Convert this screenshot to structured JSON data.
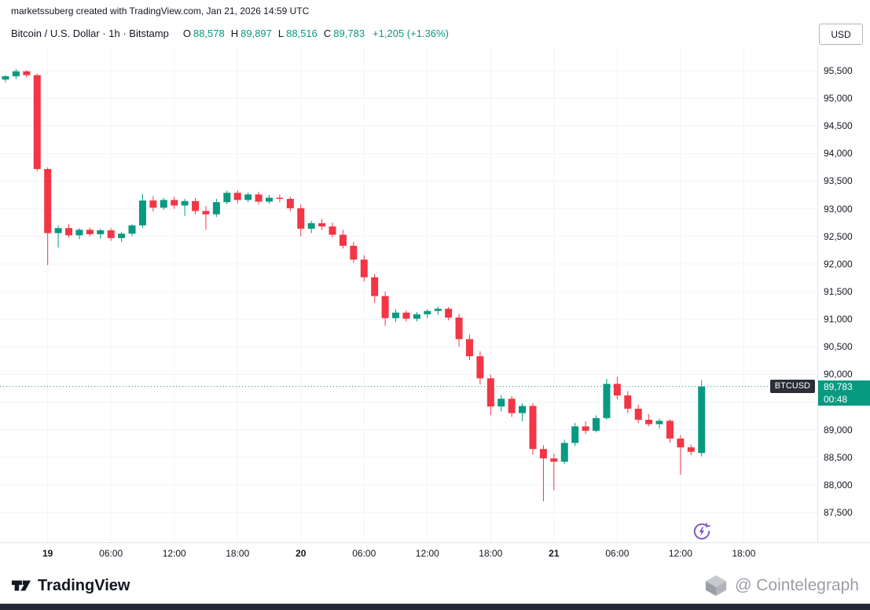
{
  "attribution": "marketssuberg created with TradingView.com, Jan 21, 2026 14:59 UTC",
  "header": {
    "symbol_title": "Bitcoin / U.S. Dollar · 1h · Bitstamp",
    "ohlc": {
      "o_label": "O",
      "o": "88,578",
      "h_label": "H",
      "h": "89,897",
      "l_label": "L",
      "l": "88,516",
      "c_label": "C",
      "c": "89,783",
      "change": "+1,205 (+1.36%)"
    },
    "currency_button": "USD"
  },
  "last_price": {
    "tag": "BTCUSD",
    "price": "89,783",
    "countdown": "00:48",
    "value": 89783
  },
  "price_axis": {
    "labels": [
      "95,500",
      "95,000",
      "94,500",
      "94,000",
      "93,500",
      "93,000",
      "92,500",
      "92,000",
      "91,500",
      "91,000",
      "90,500",
      "90,000",
      "89,500",
      "89,000",
      "88,500",
      "88,000",
      "87,500"
    ],
    "values": [
      95500,
      95000,
      94500,
      94000,
      93500,
      93000,
      92500,
      92000,
      91500,
      91000,
      90500,
      90000,
      89500,
      89000,
      88500,
      88000,
      87500
    ]
  },
  "footer": {
    "tradingview": "TradingView",
    "watermark": "@ Cointelegraph"
  },
  "colors": {
    "up": "#089981",
    "down": "#f23645",
    "grid": "#f0f3fa",
    "axis_text": "#131722",
    "accent_purple": "#7e57c2",
    "tag_bg": "#2a2e39"
  },
  "chart_data": {
    "type": "candlestick",
    "title": "Bitcoin / U.S. Dollar",
    "exchange": "Bitstamp",
    "interval": "1h",
    "currency": "USD",
    "first_candle_time": "Jan 18 20:00",
    "last_candle_time": "Jan 21 14:00",
    "ylim": [
      86959,
      95927
    ],
    "y_ticks": [
      87500,
      88000,
      88500,
      89000,
      89500,
      90000,
      90500,
      91000,
      91500,
      92000,
      92500,
      93000,
      93500,
      94000,
      94500,
      95000,
      95500
    ],
    "time_ticks": [
      {
        "i": 4,
        "label": "19",
        "major": true
      },
      {
        "i": 10,
        "label": "06:00",
        "major": false
      },
      {
        "i": 16,
        "label": "12:00",
        "major": false
      },
      {
        "i": 22,
        "label": "18:00",
        "major": false
      },
      {
        "i": 28,
        "label": "20",
        "major": true
      },
      {
        "i": 34,
        "label": "06:00",
        "major": false
      },
      {
        "i": 40,
        "label": "12:00",
        "major": false
      },
      {
        "i": 46,
        "label": "18:00",
        "major": false
      },
      {
        "i": 52,
        "label": "21",
        "major": true
      },
      {
        "i": 58,
        "label": "06:00",
        "major": false
      },
      {
        "i": 64,
        "label": "12:00",
        "major": false
      },
      {
        "i": 70,
        "label": "18:00",
        "major": false
      }
    ],
    "candles": [
      [
        95340,
        95420,
        95290,
        95400
      ],
      [
        95400,
        95530,
        95350,
        95490
      ],
      [
        95490,
        95510,
        95380,
        95420
      ],
      [
        95420,
        95450,
        93680,
        93720
      ],
      [
        93720,
        93750,
        91980,
        92560
      ],
      [
        92560,
        92700,
        92300,
        92650
      ],
      [
        92650,
        92720,
        92480,
        92520
      ],
      [
        92520,
        92650,
        92450,
        92620
      ],
      [
        92620,
        92660,
        92500,
        92540
      ],
      [
        92540,
        92640,
        92460,
        92610
      ],
      [
        92610,
        92650,
        92420,
        92470
      ],
      [
        92470,
        92580,
        92400,
        92550
      ],
      [
        92550,
        92720,
        92500,
        92700
      ],
      [
        92700,
        93270,
        92650,
        93150
      ],
      [
        93150,
        93230,
        92950,
        93020
      ],
      [
        93020,
        93200,
        92980,
        93160
      ],
      [
        93160,
        93220,
        93000,
        93060
      ],
      [
        93060,
        93180,
        92870,
        93140
      ],
      [
        93140,
        93200,
        92900,
        92960
      ],
      [
        92960,
        93050,
        92620,
        92900
      ],
      [
        92900,
        93180,
        92850,
        93120
      ],
      [
        93120,
        93330,
        93080,
        93290
      ],
      [
        93290,
        93340,
        93100,
        93160
      ],
      [
        93160,
        93300,
        93120,
        93260
      ],
      [
        93260,
        93310,
        93080,
        93130
      ],
      [
        93130,
        93250,
        93090,
        93200
      ],
      [
        93200,
        93260,
        93120,
        93180
      ],
      [
        93180,
        93220,
        92960,
        93010
      ],
      [
        93010,
        93080,
        92500,
        92640
      ],
      [
        92640,
        92780,
        92560,
        92740
      ],
      [
        92740,
        92820,
        92620,
        92680
      ],
      [
        92680,
        92750,
        92480,
        92530
      ],
      [
        92530,
        92620,
        92280,
        92330
      ],
      [
        92330,
        92400,
        92020,
        92080
      ],
      [
        92080,
        92160,
        91680,
        91760
      ],
      [
        91760,
        91820,
        91300,
        91420
      ],
      [
        91420,
        91500,
        90880,
        91020
      ],
      [
        91020,
        91180,
        90950,
        91120
      ],
      [
        91120,
        91160,
        90960,
        91010
      ],
      [
        91010,
        91130,
        90960,
        91090
      ],
      [
        91090,
        91180,
        91020,
        91150
      ],
      [
        91150,
        91230,
        91080,
        91190
      ],
      [
        91190,
        91220,
        90980,
        91030
      ],
      [
        91030,
        91100,
        90500,
        90640
      ],
      [
        90640,
        90720,
        90260,
        90330
      ],
      [
        90330,
        90420,
        89820,
        89930
      ],
      [
        89930,
        90000,
        89260,
        89420
      ],
      [
        89420,
        89630,
        89330,
        89560
      ],
      [
        89560,
        89610,
        89230,
        89300
      ],
      [
        89300,
        89480,
        89150,
        89430
      ],
      [
        89430,
        89480,
        88550,
        88650
      ],
      [
        88650,
        88720,
        87700,
        88480
      ],
      [
        88480,
        88560,
        87900,
        88420
      ],
      [
        88420,
        88820,
        88380,
        88760
      ],
      [
        88760,
        89120,
        88700,
        89060
      ],
      [
        89060,
        89150,
        88920,
        88980
      ],
      [
        88980,
        89260,
        88950,
        89210
      ],
      [
        89210,
        89920,
        89180,
        89830
      ],
      [
        89830,
        89960,
        89550,
        89620
      ],
      [
        89620,
        89700,
        89300,
        89380
      ],
      [
        89380,
        89450,
        89120,
        89180
      ],
      [
        89180,
        89280,
        89060,
        89100
      ],
      [
        89100,
        89200,
        89020,
        89160
      ],
      [
        89160,
        89190,
        88760,
        88840
      ],
      [
        88840,
        88900,
        88180,
        88680
      ],
      [
        88680,
        88730,
        88540,
        88600
      ],
      [
        88578,
        89897,
        88516,
        89783
      ]
    ]
  }
}
